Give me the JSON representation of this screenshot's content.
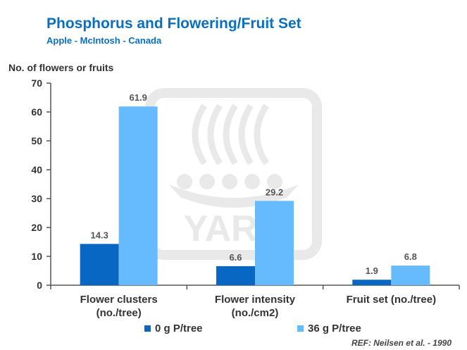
{
  "title": "Phosphorus and Flowering/Fruit Set",
  "subtitle": "Apple - McIntosh - Canada",
  "reference": "REF: Neilsen et al. - 1990",
  "watermark_text": "YARA",
  "colors": {
    "title": "#0b6fc0",
    "series_0": "#0867c2",
    "series_1": "#66bbff",
    "watermark": "#d8d8d8"
  },
  "chart_data": {
    "type": "bar",
    "title": "Phosphorus and Flowering/Fruit Set",
    "ylabel": "No. of flowers or fruits",
    "xlabel": "",
    "ylim": [
      0,
      70
    ],
    "yticks": [
      0,
      10,
      20,
      30,
      40,
      50,
      60,
      70
    ],
    "grid": false,
    "legend_position": "bottom",
    "categories": [
      [
        "Flower clusters",
        "(no./tree)"
      ],
      [
        "Flower intensity",
        "(no./cm2)"
      ],
      [
        "Fruit set (no./tree)"
      ]
    ],
    "series": [
      {
        "name": "0 g P/tree",
        "values": [
          14.3,
          6.6,
          1.9
        ],
        "color": "#0867c2"
      },
      {
        "name": "36 g P/tree",
        "values": [
          61.9,
          29.2,
          6.8
        ],
        "color": "#66bbff"
      }
    ]
  }
}
